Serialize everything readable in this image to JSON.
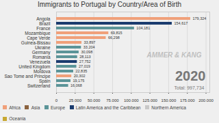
{
  "chart_data": {
    "type": "bar",
    "orientation": "horizontal",
    "title": "Immigrants to Portugal by Country/Area of Birth",
    "categories": [
      "Angola",
      "Brazil",
      "France",
      "Mozambique",
      "Cape Verde",
      "Guinea-Bissau",
      "Ukraine",
      "Germany",
      "Romania",
      "Venezuela",
      "United Kingdom",
      "Moldova",
      "Sao Tome and Principe",
      "Spain",
      "Switzerland"
    ],
    "series": [
      {
        "name": "Africa",
        "color": "#F0A07A",
        "values": [
          179324,
          null,
          null,
          69815,
          66298,
          33897,
          null,
          null,
          null,
          null,
          null,
          null,
          20302,
          null,
          null
        ],
        "value_labels": [
          "179,324",
          null,
          null,
          "69,815",
          "66,298",
          "33,897",
          null,
          null,
          null,
          null,
          null,
          null,
          "20,302",
          null,
          null
        ]
      },
      {
        "name": "Asia",
        "color": "#8B6340",
        "values": [
          null,
          null,
          null,
          null,
          null,
          null,
          null,
          null,
          null,
          null,
          null,
          null,
          null,
          null,
          null
        ],
        "value_labels": [
          null,
          null,
          null,
          null,
          null,
          null,
          null,
          null,
          null,
          null,
          null,
          null,
          null,
          null,
          null
        ]
      },
      {
        "name": "Europe",
        "color": "#5B9498",
        "values": [
          null,
          null,
          104181,
          null,
          null,
          null,
          33204,
          30098,
          28113,
          null,
          27019,
          22835,
          null,
          19175,
          16068
        ],
        "value_labels": [
          null,
          null,
          "104,181",
          null,
          null,
          null,
          "33,204",
          "30,098",
          "28,113",
          null,
          "27,019",
          "22,835",
          null,
          "19,175",
          "16,068"
        ]
      },
      {
        "name": "Latin America and the Caribbean",
        "color": "#1A3B6E",
        "values": [
          null,
          154617,
          null,
          null,
          null,
          null,
          null,
          null,
          null,
          27752,
          null,
          null,
          null,
          null,
          null
        ],
        "value_labels": [
          null,
          "154,617",
          null,
          null,
          null,
          null,
          null,
          null,
          null,
          "27,752",
          null,
          null,
          null,
          null,
          null
        ]
      },
      {
        "name": "Northern America",
        "color": "#C8C8C8",
        "values": [
          null,
          null,
          null,
          null,
          null,
          null,
          null,
          null,
          null,
          null,
          null,
          null,
          null,
          null,
          null
        ],
        "value_labels": [
          null,
          null,
          null,
          null,
          null,
          null,
          null,
          null,
          null,
          null,
          null,
          null,
          null,
          null,
          null
        ]
      },
      {
        "name": "Oceania",
        "color": "#C8A830",
        "values": [
          null,
          null,
          null,
          null,
          null,
          null,
          null,
          null,
          null,
          null,
          null,
          null,
          null,
          null,
          null
        ],
        "value_labels": [
          null,
          null,
          null,
          null,
          null,
          null,
          null,
          null,
          null,
          null,
          null,
          null,
          null,
          null,
          null
        ]
      }
    ],
    "xlim": [
      0,
      205000
    ],
    "xticks": [
      0,
      {
        "value": 25000,
        "label": "25,000"
      },
      {
        "value": 50000,
        "label": "50,000"
      },
      {
        "value": 75000,
        "label": "75,000"
      },
      {
        "value": 100000,
        "label": "100,000"
      },
      {
        "value": 125000,
        "label": "125,000"
      },
      {
        "value": 150000,
        "label": "150,000"
      },
      {
        "value": 175000,
        "label": "175,000"
      },
      {
        "value": 200000,
        "label": "200,000"
      }
    ],
    "grid": true,
    "data_labels": true,
    "legend": "bottom",
    "annotations": [
      "2020",
      "Total: 997,734",
      "AMMER & KANG"
    ]
  }
}
